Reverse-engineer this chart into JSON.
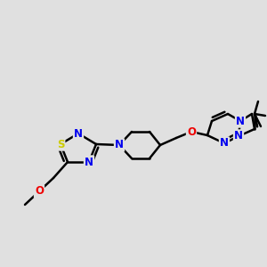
{
  "bg_color": "#e0e0e0",
  "atom_colors": {
    "C": "#000000",
    "N": "#0000ee",
    "O": "#ee0000",
    "S": "#cccc00"
  },
  "bond_color": "#000000",
  "bond_width": 1.8,
  "font_size_atom": 8.5,
  "figsize": [
    3.0,
    3.0
  ],
  "dpi": 100
}
